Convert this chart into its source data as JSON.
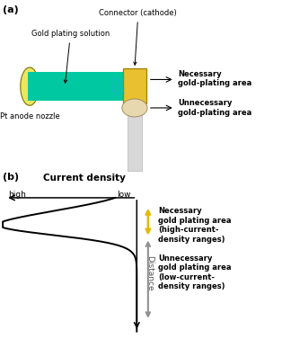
{
  "fig_width": 3.14,
  "fig_height": 3.77,
  "dpi": 100,
  "bg_color": "#ffffff",
  "panel_a_label": "(a)",
  "panel_b_label": "(b)",
  "connector_label": "Connector (cathode)",
  "gold_solution_label": "Gold plating solution",
  "pt_anode_label": "Pt anode nozzle",
  "necessary_a_label": "Necessary\ngold-plating area",
  "unnecessary_a_label": "Unnecessary\ngold-plating area",
  "current_density_label": "Current density",
  "high_label": "high",
  "low_label": "low",
  "necessary_b_label": "Necessary\ngold plating area\n(high-current-\ndensity ranges)",
  "unnecessary_b_label": "Unnecessary\ngold plating area\n(low-current-\ndensity ranges)",
  "distance_label": "Distance",
  "nozzle_color": "#e8e860",
  "tube_color": "#00c8a0",
  "connector_color": "#e8c030",
  "connector_border": "#a08000",
  "strip_color": "#d8d8d8",
  "ellipse_color": "#e8d8b0",
  "yellow_arrow_color": "#e8b800",
  "gray_arrow_color": "#909090"
}
